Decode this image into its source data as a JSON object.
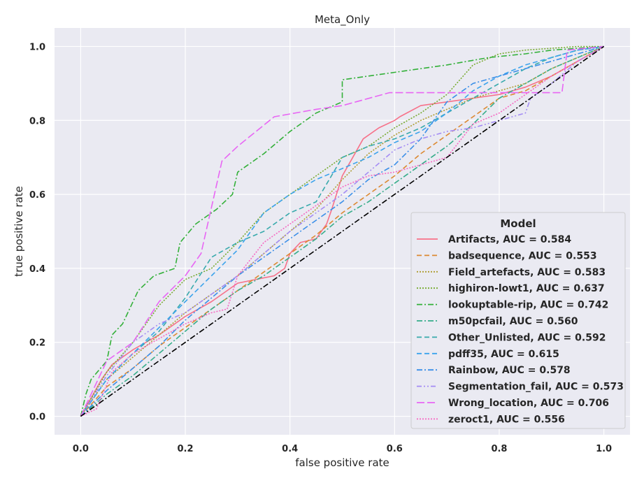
{
  "chart_data": {
    "type": "line",
    "title": "Meta_Only",
    "xlabel": "false positive rate",
    "ylabel": "true positive rate",
    "xlim": [
      -0.05,
      1.05
    ],
    "ylim": [
      -0.05,
      1.05
    ],
    "xticks": [
      0.0,
      0.2,
      0.4,
      0.6,
      0.8,
      1.0
    ],
    "yticks": [
      0.0,
      0.2,
      0.4,
      0.6,
      0.8,
      1.0
    ],
    "xtick_labels": [
      "0.0",
      "0.2",
      "0.4",
      "0.6",
      "0.8",
      "1.0"
    ],
    "ytick_labels": [
      "0.0",
      "0.2",
      "0.4",
      "0.6",
      "0.8",
      "1.0"
    ],
    "grid": true,
    "legend": {
      "title": "Model",
      "placement": "lower-right"
    },
    "diagonal": {
      "x": [
        0,
        1
      ],
      "y": [
        0,
        1
      ],
      "color": "#000000",
      "dash": "dashdot"
    },
    "series": [
      {
        "name": "Artifacts, AUC = 0.584",
        "color": "#f77189",
        "dash": "solid",
        "x": [
          0,
          0.02,
          0.04,
          0.06,
          0.1,
          0.15,
          0.2,
          0.25,
          0.3,
          0.37,
          0.39,
          0.4,
          0.42,
          0.45,
          0.47,
          0.48,
          0.5,
          0.52,
          0.54,
          0.57,
          0.6,
          0.61,
          0.65,
          0.7,
          0.75,
          0.8,
          0.85,
          0.9,
          0.95,
          1.0
        ],
        "y": [
          0,
          0.05,
          0.1,
          0.14,
          0.18,
          0.22,
          0.27,
          0.31,
          0.36,
          0.38,
          0.4,
          0.44,
          0.47,
          0.48,
          0.52,
          0.56,
          0.65,
          0.7,
          0.75,
          0.78,
          0.8,
          0.81,
          0.84,
          0.85,
          0.86,
          0.87,
          0.89,
          0.92,
          0.96,
          1.0
        ]
      },
      {
        "name": "badsequence, AUC = 0.553",
        "color": "#dc8932",
        "dash": "dashed",
        "x": [
          0,
          0.05,
          0.1,
          0.15,
          0.2,
          0.25,
          0.3,
          0.35,
          0.4,
          0.45,
          0.5,
          0.55,
          0.6,
          0.65,
          0.7,
          0.75,
          0.8,
          0.85,
          0.9,
          0.95,
          1.0
        ],
        "y": [
          0,
          0.08,
          0.13,
          0.19,
          0.24,
          0.29,
          0.34,
          0.39,
          0.44,
          0.49,
          0.55,
          0.6,
          0.65,
          0.71,
          0.76,
          0.81,
          0.86,
          0.88,
          0.92,
          0.96,
          1.0
        ]
      },
      {
        "name": "Field_artefacts, AUC = 0.583",
        "color": "#ae9d31",
        "dash": "dotted",
        "x": [
          0,
          0.05,
          0.1,
          0.15,
          0.2,
          0.25,
          0.3,
          0.35,
          0.4,
          0.45,
          0.5,
          0.55,
          0.6,
          0.65,
          0.7,
          0.75,
          0.8,
          0.85,
          0.9,
          0.95,
          1.0
        ],
        "y": [
          0,
          0.1,
          0.16,
          0.22,
          0.28,
          0.33,
          0.38,
          0.44,
          0.5,
          0.56,
          0.64,
          0.71,
          0.76,
          0.8,
          0.83,
          0.86,
          0.88,
          0.9,
          0.94,
          0.97,
          1.0
        ]
      },
      {
        "name": "highiron-lowt1, AUC = 0.637",
        "color": "#77ab31",
        "dash": "dotted",
        "x": [
          0,
          0.05,
          0.1,
          0.15,
          0.2,
          0.25,
          0.3,
          0.35,
          0.4,
          0.45,
          0.5,
          0.55,
          0.6,
          0.65,
          0.7,
          0.75,
          0.8,
          0.85,
          0.9,
          0.95,
          1.0
        ],
        "y": [
          0,
          0.12,
          0.2,
          0.3,
          0.37,
          0.4,
          0.47,
          0.55,
          0.6,
          0.65,
          0.7,
          0.73,
          0.78,
          0.82,
          0.87,
          0.95,
          0.98,
          0.99,
          0.995,
          1.0,
          1.0
        ]
      },
      {
        "name": "lookuptable-rip, AUC = 0.742",
        "color": "#33b039",
        "dash": "dashdot",
        "x": [
          0,
          0.01,
          0.02,
          0.05,
          0.06,
          0.08,
          0.11,
          0.14,
          0.18,
          0.19,
          0.22,
          0.26,
          0.29,
          0.3,
          0.35,
          0.4,
          0.45,
          0.5,
          0.5,
          0.6,
          0.7,
          0.78,
          0.85,
          0.9,
          1.0
        ],
        "y": [
          0,
          0.06,
          0.1,
          0.15,
          0.22,
          0.25,
          0.34,
          0.38,
          0.4,
          0.47,
          0.52,
          0.56,
          0.6,
          0.66,
          0.71,
          0.77,
          0.82,
          0.85,
          0.91,
          0.93,
          0.95,
          0.97,
          0.98,
          0.99,
          1.0
        ]
      },
      {
        "name": "m50pcfail, AUC = 0.560",
        "color": "#36ad8a",
        "dash": "dashdot",
        "x": [
          0,
          0.05,
          0.1,
          0.15,
          0.2,
          0.25,
          0.3,
          0.35,
          0.4,
          0.45,
          0.5,
          0.55,
          0.6,
          0.65,
          0.7,
          0.75,
          0.8,
          0.85,
          0.9,
          0.95,
          1.0
        ],
        "y": [
          0,
          0.06,
          0.11,
          0.17,
          0.23,
          0.29,
          0.34,
          0.38,
          0.43,
          0.48,
          0.54,
          0.58,
          0.63,
          0.68,
          0.73,
          0.79,
          0.86,
          0.9,
          0.94,
          0.97,
          1.0
        ]
      },
      {
        "name": "Other_Unlisted, AUC = 0.592",
        "color": "#38aaac",
        "dash": "dashed",
        "x": [
          0,
          0.05,
          0.1,
          0.15,
          0.2,
          0.25,
          0.3,
          0.35,
          0.4,
          0.45,
          0.5,
          0.55,
          0.6,
          0.65,
          0.7,
          0.75,
          0.8,
          0.85,
          0.9,
          0.95,
          1.0
        ],
        "y": [
          0,
          0.1,
          0.17,
          0.23,
          0.32,
          0.43,
          0.47,
          0.5,
          0.55,
          0.58,
          0.7,
          0.73,
          0.75,
          0.78,
          0.82,
          0.86,
          0.9,
          0.94,
          0.97,
          0.99,
          1.0
        ]
      },
      {
        "name": "pdff35, AUC = 0.615",
        "color": "#3ba3ec",
        "dash": "dashed",
        "x": [
          0,
          0.05,
          0.1,
          0.15,
          0.2,
          0.25,
          0.3,
          0.35,
          0.4,
          0.45,
          0.5,
          0.55,
          0.6,
          0.65,
          0.7,
          0.75,
          0.8,
          0.85,
          0.9,
          0.95,
          1.0
        ],
        "y": [
          0,
          0.1,
          0.17,
          0.24,
          0.31,
          0.38,
          0.45,
          0.55,
          0.6,
          0.64,
          0.67,
          0.7,
          0.74,
          0.77,
          0.82,
          0.88,
          0.92,
          0.95,
          0.97,
          0.99,
          1.0
        ]
      },
      {
        "name": "Rainbow, AUC = 0.578",
        "color": "#3b8fe8",
        "dash": "dashdot",
        "x": [
          0,
          0.05,
          0.1,
          0.15,
          0.2,
          0.25,
          0.3,
          0.35,
          0.4,
          0.45,
          0.5,
          0.55,
          0.6,
          0.65,
          0.7,
          0.75,
          0.8,
          0.85,
          0.9,
          0.95,
          1.0
        ],
        "y": [
          0,
          0.07,
          0.13,
          0.19,
          0.26,
          0.32,
          0.38,
          0.43,
          0.48,
          0.53,
          0.58,
          0.64,
          0.68,
          0.75,
          0.85,
          0.9,
          0.92,
          0.94,
          0.96,
          0.98,
          1.0
        ]
      },
      {
        "name": "Segmentation_fail, AUC = 0.573",
        "color": "#a48cf4",
        "dash": "dashdotdot",
        "x": [
          0,
          0.05,
          0.1,
          0.15,
          0.2,
          0.25,
          0.3,
          0.35,
          0.4,
          0.45,
          0.5,
          0.55,
          0.6,
          0.65,
          0.7,
          0.75,
          0.8,
          0.85,
          0.86,
          0.9,
          0.95,
          1.0
        ],
        "y": [
          0,
          0.11,
          0.2,
          0.25,
          0.28,
          0.33,
          0.38,
          0.44,
          0.5,
          0.55,
          0.6,
          0.66,
          0.72,
          0.75,
          0.77,
          0.78,
          0.8,
          0.82,
          0.86,
          0.9,
          0.96,
          1.0
        ]
      },
      {
        "name": "Wrong_location, AUC = 0.706",
        "color": "#e866f4",
        "dash": "longdash",
        "x": [
          0,
          0.05,
          0.1,
          0.15,
          0.2,
          0.23,
          0.27,
          0.3,
          0.37,
          0.45,
          0.5,
          0.59,
          0.92,
          0.93,
          1.0
        ],
        "y": [
          0,
          0.15,
          0.2,
          0.31,
          0.38,
          0.44,
          0.69,
          0.73,
          0.81,
          0.83,
          0.84,
          0.875,
          0.875,
          0.99,
          1.0
        ]
      },
      {
        "name": "zeroct1, AUC = 0.556",
        "color": "#f668c2",
        "dash": "dotted",
        "x": [
          0,
          0.03,
          0.06,
          0.1,
          0.15,
          0.2,
          0.25,
          0.28,
          0.3,
          0.35,
          0.4,
          0.45,
          0.5,
          0.55,
          0.6,
          0.65,
          0.7,
          0.75,
          0.8,
          0.85,
          0.9,
          0.95,
          1.0
        ],
        "y": [
          0,
          0.02,
          0.12,
          0.17,
          0.21,
          0.25,
          0.28,
          0.29,
          0.38,
          0.47,
          0.52,
          0.57,
          0.62,
          0.65,
          0.66,
          0.68,
          0.7,
          0.79,
          0.82,
          0.87,
          0.92,
          0.96,
          1.0
        ]
      }
    ]
  }
}
